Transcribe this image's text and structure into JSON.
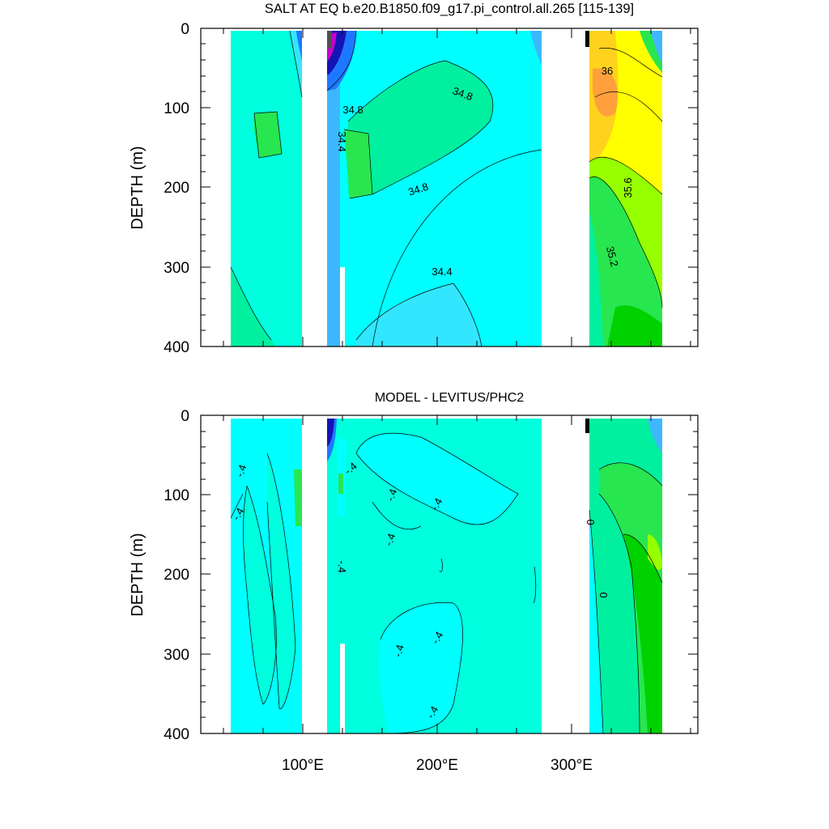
{
  "colors": {
    "background_field": "#00ffde",
    "cyan": "#00ffff",
    "light_blue": "#33e6ff",
    "mid_blue": "#3db8ff",
    "blue": "#1e78ff",
    "dark_blue": "#1414b4",
    "purple": "#8c28c8",
    "magenta": "#c800c8",
    "gray": "#505050",
    "sea_green": "#00f0a0",
    "green": "#28e650",
    "bright_green": "#00d200",
    "lime": "#96ff00",
    "yellow": "#ffff00",
    "gold": "#ffd21e",
    "orange": "#ffa03c"
  },
  "chart_data": [
    {
      "type": "heatmap",
      "title": "SALT AT EQ b.e20.B1850.f09_g17.pi_control.all.265 [115-139]",
      "xlabel": "",
      "ylabel": "DEPTH (m)",
      "x_ticks": [
        "100°E",
        "200°E",
        "300°E"
      ],
      "x_tick_values": [
        100,
        200,
        300
      ],
      "y_ticks": [
        "0",
        "100",
        "200",
        "300",
        "400"
      ],
      "y_tick_values": [
        0,
        100,
        200,
        300,
        400
      ],
      "xlim": [
        30,
        390
      ],
      "ylim": [
        400,
        0
      ],
      "contour_labels": [
        {
          "text": "36",
          "x": 326,
          "y": 55
        },
        {
          "text": "34.8",
          "x": 248,
          "y": 85
        },
        {
          "text": "34.8",
          "x": 139,
          "y": 103
        },
        {
          "text": "34.4",
          "x": 126,
          "y": 142
        },
        {
          "text": "34.8",
          "x": 188,
          "y": 205
        },
        {
          "text": "35.6",
          "x": 365,
          "y": 200
        },
        {
          "text": "35.2",
          "x": 330,
          "y": 290
        },
        {
          "text": "34.4",
          "x": 203,
          "y": 305
        }
      ]
    },
    {
      "type": "heatmap",
      "title": "MODEL - LEVITUS/PHC2",
      "xlabel": "",
      "ylabel": "DEPTH (m)",
      "x_ticks": [
        "100°E",
        "200°E",
        "300°E"
      ],
      "x_tick_values": [
        100,
        200,
        300
      ],
      "y_ticks": [
        "0",
        "100",
        "200",
        "300",
        "400"
      ],
      "y_tick_values": [
        0,
        100,
        200,
        300,
        400
      ],
      "xlim": [
        30,
        390
      ],
      "ylim": [
        400,
        0
      ],
      "contour_labels": [
        {
          "text": "-.4",
          "x": 46,
          "y": 70
        },
        {
          "text": "-.4",
          "x": 44,
          "y": 125
        },
        {
          "text": "-.4",
          "x": 140,
          "y": 68
        },
        {
          "text": "-.4",
          "x": 172,
          "y": 108
        },
        {
          "text": "-.4",
          "x": 208,
          "y": 115
        },
        {
          "text": "-.4",
          "x": 170,
          "y": 155
        },
        {
          "text": "-.4",
          "x": 118,
          "y": 190
        },
        {
          "text": "0",
          "x": 317,
          "y": 132
        },
        {
          "text": "0",
          "x": 326,
          "y": 225
        },
        {
          "text": "-.4",
          "x": 178,
          "y": 295
        },
        {
          "text": "-.4",
          "x": 204,
          "y": 285
        },
        {
          "text": "-.4",
          "x": 200,
          "y": 370
        }
      ]
    }
  ]
}
